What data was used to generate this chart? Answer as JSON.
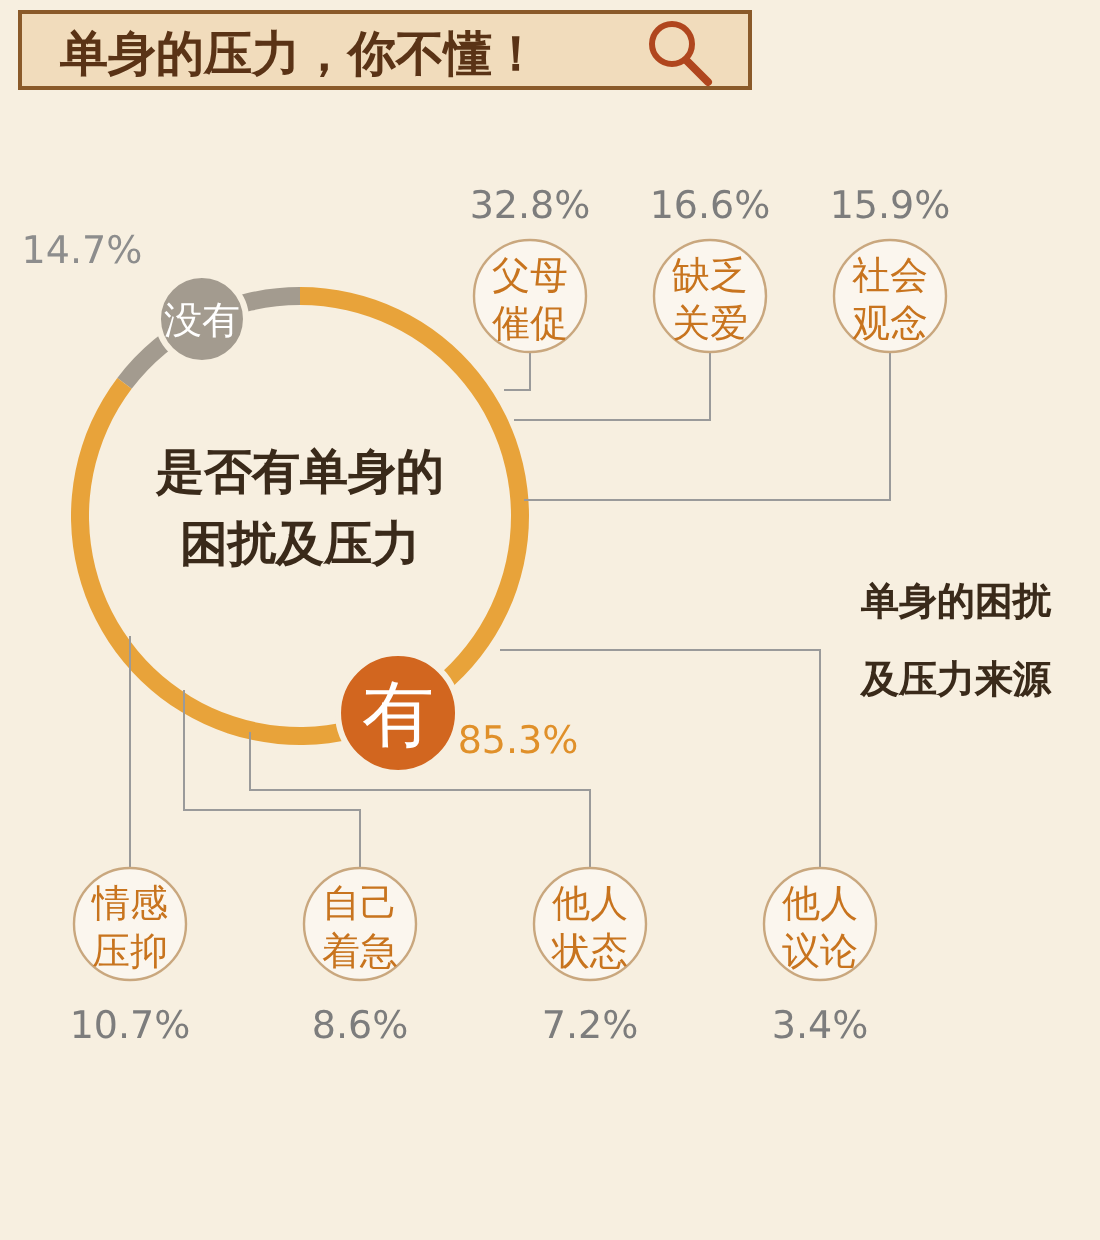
{
  "chart_data": [
    {
      "type": "donut",
      "title": "单身的压力，你不懂！",
      "subtitle": "是否有单身的困扰及压力",
      "categories": [
        "没有",
        "有"
      ],
      "values": [
        14.7,
        85.3
      ],
      "colors": [
        "#a39b8f",
        "#e8a33a"
      ],
      "value_labels": [
        "14.7%",
        "85.3%"
      ]
    },
    {
      "type": "other",
      "title": "单身的困扰及压力来源",
      "categories": [
        "父母催促",
        "缺乏关爱",
        "社会观念",
        "情感压抑",
        "自己着急",
        "他人状态",
        "他人议论"
      ],
      "values": [
        32.8,
        16.6,
        15.9,
        10.7,
        8.6,
        7.2,
        3.4
      ],
      "value_labels": [
        "32.8%",
        "16.6%",
        "15.9%",
        "10.7%",
        "8.6%",
        "7.2%",
        "3.4%"
      ],
      "color": "#c8741e"
    }
  ]
}
